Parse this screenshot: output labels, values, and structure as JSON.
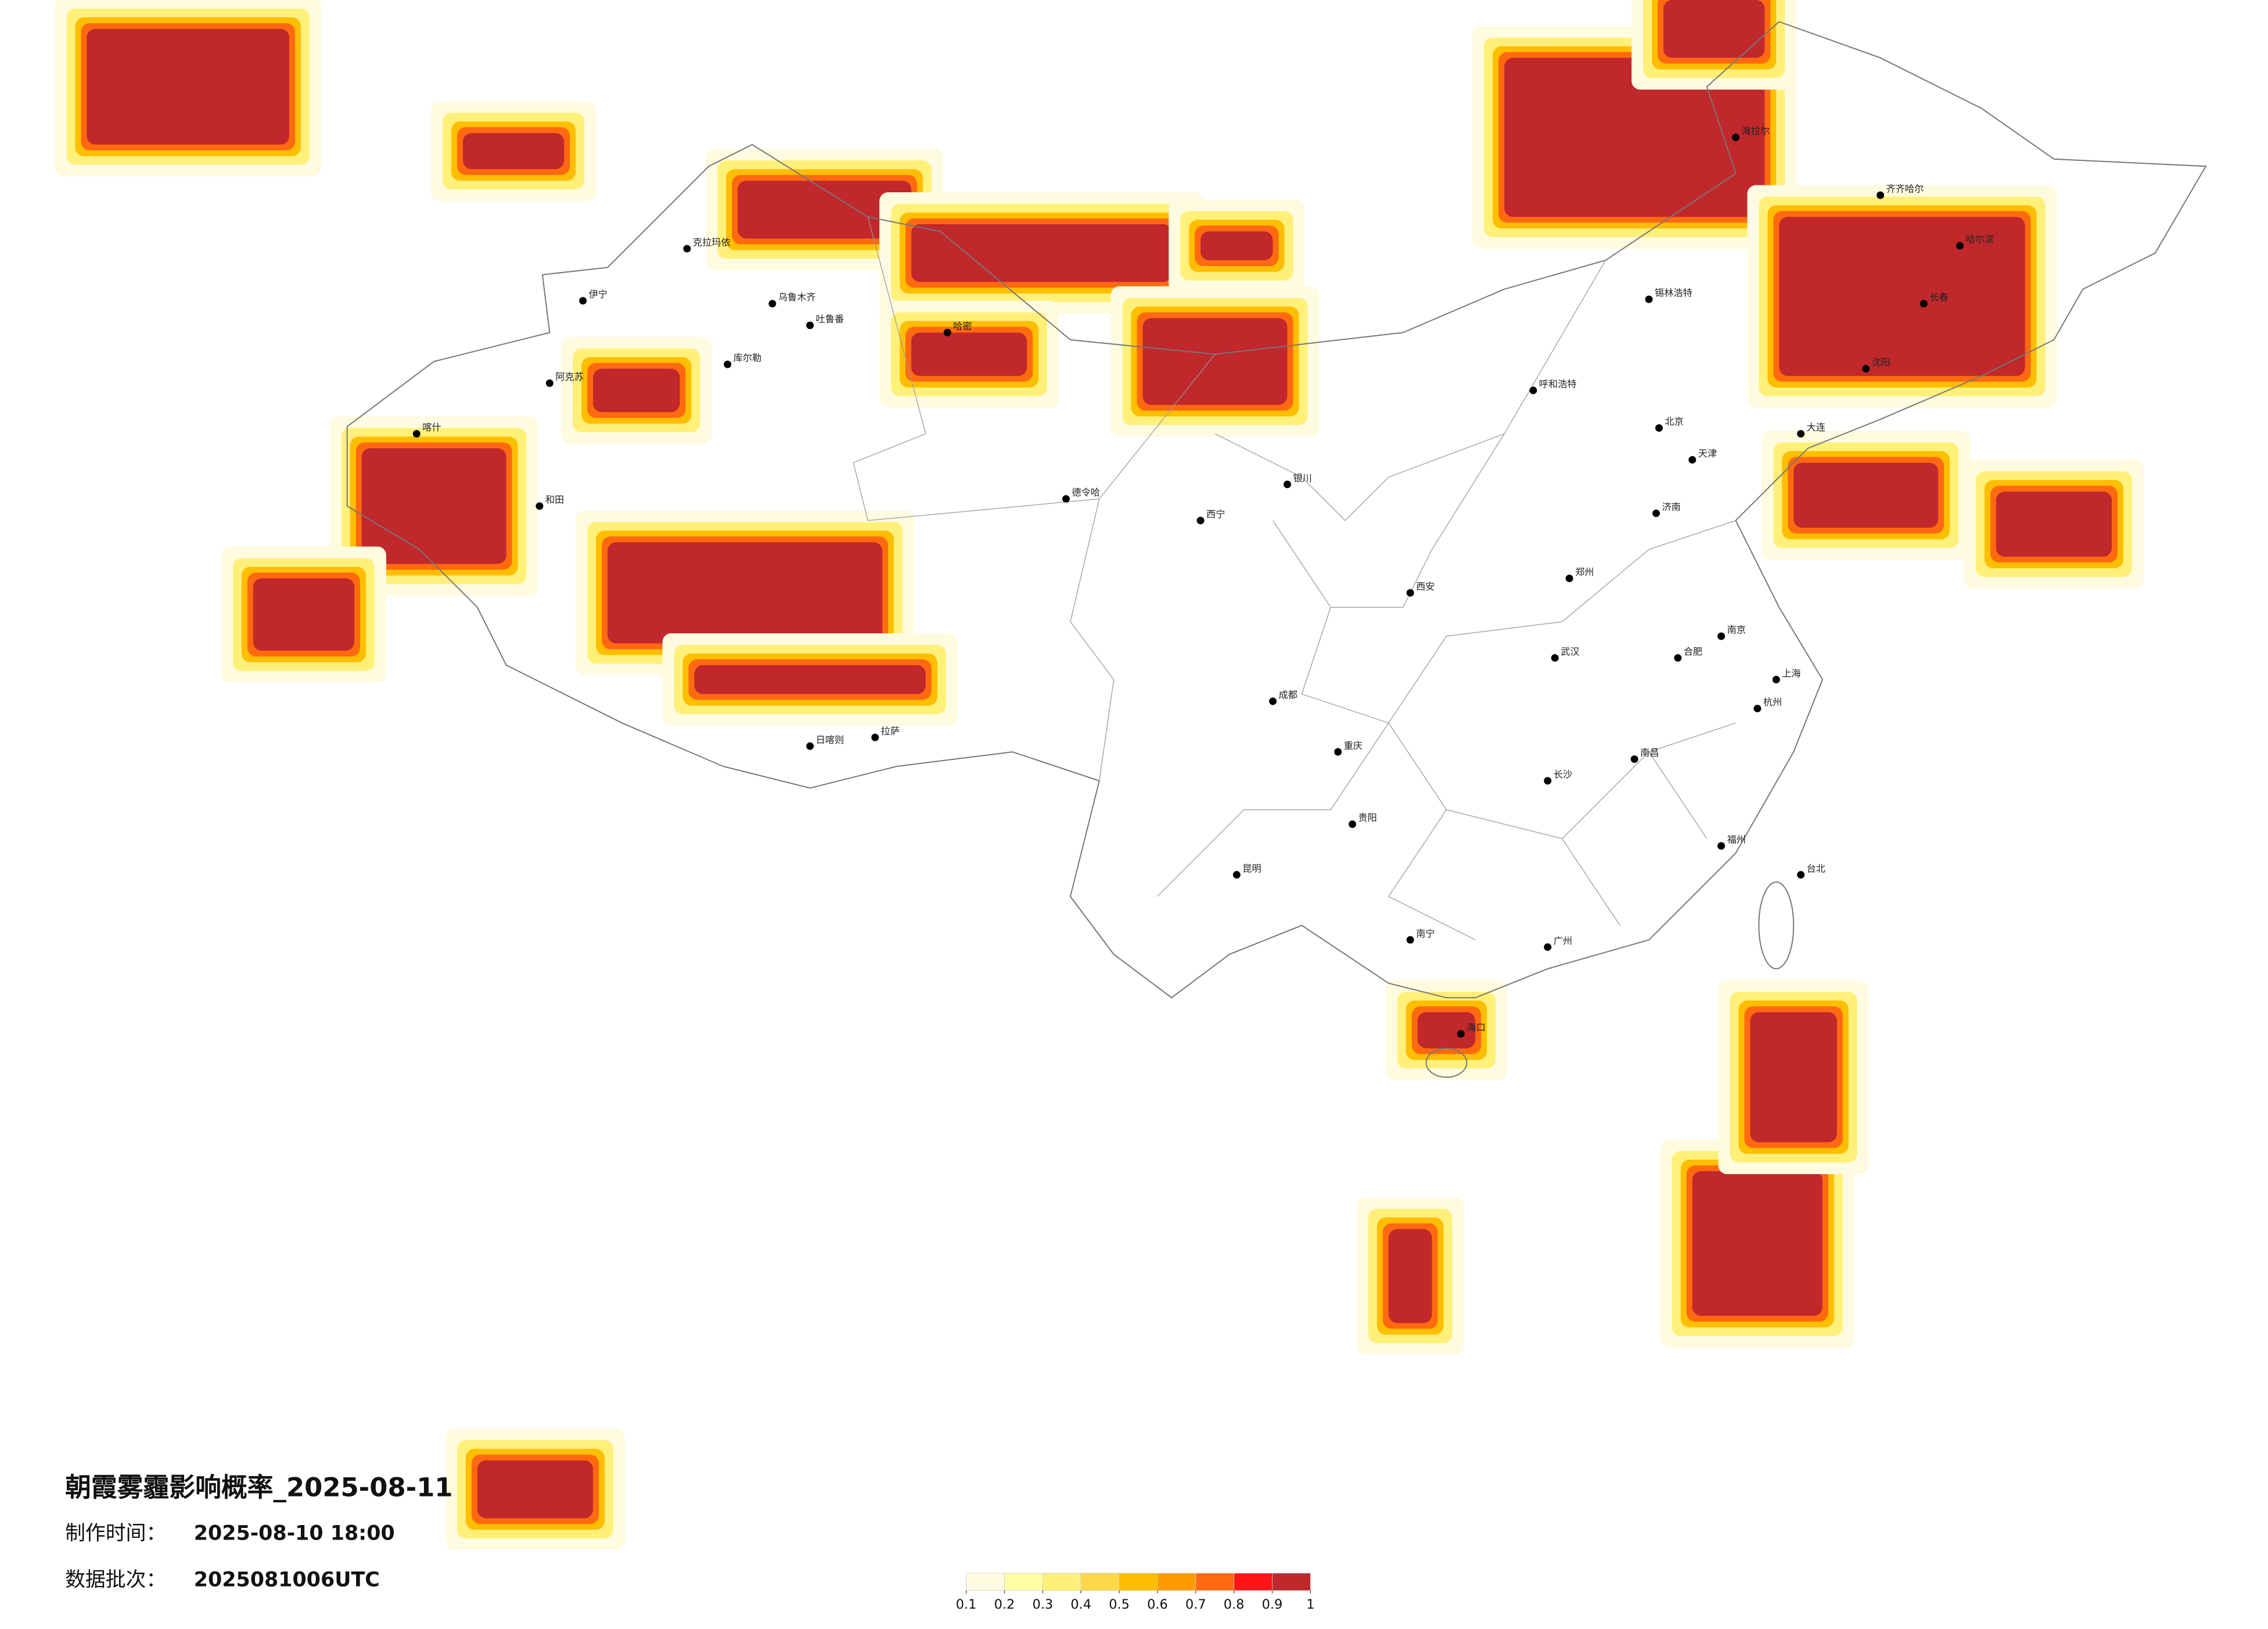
{
  "title": "朝霞雾霾影响概率_2025-08-11",
  "production_time": {
    "label": "制作时间：",
    "value": "2025-08-10 18:00"
  },
  "batch": {
    "label": "数据批次：",
    "value": "2025081006UTC"
  },
  "legend": {
    "ticks": [
      0.1,
      0.2,
      0.3,
      0.4,
      0.5,
      0.6,
      0.7,
      0.8,
      0.9,
      1
    ],
    "colors": [
      "#fffbe0",
      "#ffffa8",
      "#fff07a",
      "#ffd84a",
      "#ffbe00",
      "#ff9a00",
      "#ff6a10",
      "#ff1515",
      "#c0282c"
    ]
  },
  "cities": [
    "克拉玛依",
    "伊宁",
    "乌鲁木齐",
    "吐鲁番",
    "库尔勒",
    "阿克苏",
    "喀什",
    "和田",
    "哈密",
    "德令哈",
    "拉萨",
    "日喀则",
    "西宁",
    "银川",
    "呼和浩特",
    "锡林浩特",
    "海拉尔",
    "齐齐哈尔",
    "哈尔滨",
    "长春",
    "沈阳",
    "大连",
    "北京",
    "天津",
    "济南",
    "郑州",
    "西安",
    "合肥",
    "南京",
    "上海",
    "杭州",
    "南昌",
    "福州",
    "武汉",
    "长沙",
    "成都",
    "重庆",
    "贵阳",
    "昆明",
    "南宁",
    "广州",
    "海口",
    "台北"
  ]
}
